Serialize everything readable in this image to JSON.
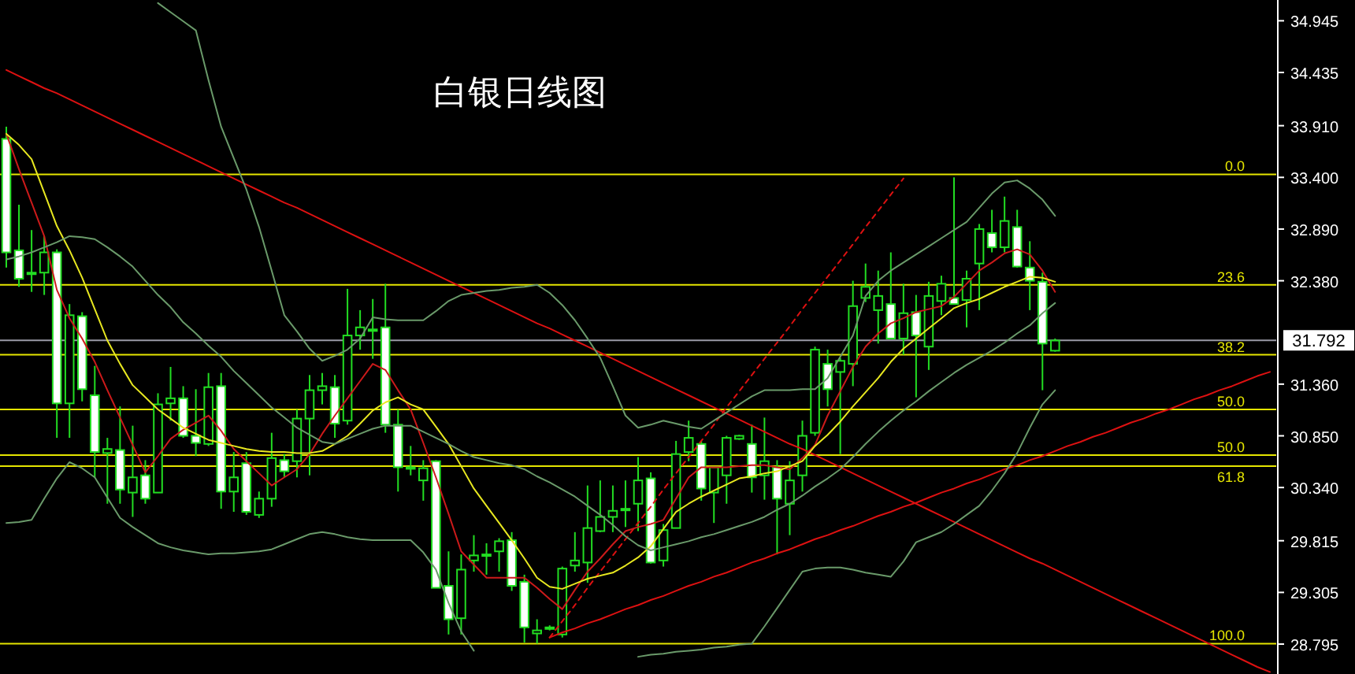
{
  "chart_data": {
    "type": "candlestick",
    "title": "白银日线图",
    "categories": [
      null,
      null,
      null,
      null,
      null,
      null,
      null,
      null,
      null,
      null,
      null,
      null,
      null,
      null,
      null,
      null,
      null,
      null,
      null,
      null,
      null,
      null,
      null,
      null,
      null,
      null,
      null,
      null,
      null,
      null,
      null,
      null,
      null,
      null,
      null,
      null,
      null,
      null,
      null,
      null,
      null,
      null,
      null,
      null,
      null,
      null,
      null,
      null,
      null,
      null,
      null,
      null,
      null,
      null,
      null,
      null,
      null,
      null,
      null,
      null,
      null,
      null,
      null,
      null,
      null,
      null,
      null,
      null,
      null,
      null,
      null,
      null,
      null,
      null,
      null,
      null,
      null,
      null,
      null,
      null,
      null,
      null,
      null,
      null,
      null,
      null,
      null,
      null,
      null,
      null,
      null,
      null,
      null,
      null,
      null,
      null,
      null,
      null,
      null,
      null,
      null
    ],
    "ylim": [
      28.5,
      35.15
    ],
    "yticks": [
      34.945,
      34.435,
      {
        "value": 33.91,
        "label": "33.910"
      },
      {
        "value": 33.4,
        "label": "33.400"
      },
      {
        "value": 32.89,
        "label": "32.890"
      },
      {
        "value": 32.38,
        "label": "32.380"
      },
      {
        "value": 31.36,
        "label": "31.360"
      },
      {
        "value": 30.85,
        "label": "30.850"
      },
      {
        "value": 30.34,
        "label": "30.340"
      },
      29.815,
      29.305,
      28.795
    ],
    "tick_labels": "y",
    "color": "#22dd22",
    "ohlc": [
      [
        33.78,
        33.9,
        32.51,
        32.66
      ],
      [
        32.68,
        33.13,
        32.32,
        32.4
      ],
      [
        32.46,
        32.88,
        32.27,
        32.46
      ],
      [
        32.46,
        32.82,
        32.24,
        32.66
      ],
      [
        32.66,
        32.69,
        30.83,
        31.17
      ],
      [
        31.17,
        32.15,
        30.83,
        32.04
      ],
      [
        32.03,
        32.07,
        31.19,
        31.31
      ],
      [
        31.25,
        31.54,
        30.44,
        30.69
      ],
      [
        30.68,
        30.83,
        30.18,
        30.72
      ],
      [
        30.71,
        31.14,
        30.18,
        30.32
      ],
      [
        30.29,
        30.95,
        30.05,
        30.44
      ],
      [
        30.46,
        30.61,
        30.18,
        30.23
      ],
      [
        30.29,
        31.27,
        30.29,
        31.16
      ],
      [
        31.17,
        31.53,
        31.0,
        31.22
      ],
      [
        31.22,
        31.34,
        30.83,
        30.85
      ],
      [
        30.85,
        31.31,
        30.65,
        30.78
      ],
      [
        30.77,
        31.47,
        30.75,
        31.33
      ],
      [
        31.34,
        31.47,
        30.13,
        30.3
      ],
      [
        30.3,
        30.69,
        30.1,
        30.44
      ],
      [
        30.58,
        30.69,
        30.07,
        30.1
      ],
      [
        30.07,
        30.3,
        30.04,
        30.23
      ],
      [
        30.23,
        30.88,
        30.15,
        30.63
      ],
      [
        30.61,
        30.67,
        30.44,
        30.5
      ],
      [
        30.6,
        31.11,
        30.44,
        31.02
      ],
      [
        31.02,
        31.45,
        30.46,
        31.3
      ],
      [
        31.3,
        31.47,
        31.16,
        31.34
      ],
      [
        31.33,
        31.45,
        30.83,
        30.97
      ],
      [
        31.0,
        32.3,
        30.96,
        31.84
      ],
      [
        31.84,
        32.09,
        31.7,
        31.92
      ],
      [
        31.9,
        32.2,
        31.61,
        31.9
      ],
      [
        31.92,
        32.35,
        30.88,
        30.96
      ],
      [
        30.96,
        31.11,
        30.3,
        30.54
      ],
      [
        30.54,
        30.75,
        30.46,
        30.53
      ],
      [
        30.41,
        30.61,
        30.21,
        30.53
      ],
      [
        30.6,
        30.61,
        29.35,
        29.35
      ],
      [
        29.37,
        29.71,
        28.89,
        29.04
      ],
      [
        29.05,
        29.68,
        28.89,
        29.53
      ],
      [
        29.62,
        29.87,
        29.51,
        29.67
      ],
      [
        29.68,
        29.79,
        29.48,
        29.68
      ],
      [
        29.71,
        29.84,
        29.51,
        29.81
      ],
      [
        29.82,
        29.9,
        29.32,
        29.37
      ],
      [
        29.41,
        29.48,
        28.81,
        28.96
      ],
      [
        28.9,
        29.04,
        28.8,
        28.93
      ],
      [
        28.95,
        28.98,
        28.93,
        28.96
      ],
      [
        28.89,
        29.56,
        28.86,
        29.54
      ],
      [
        29.57,
        29.9,
        29.51,
        29.62
      ],
      [
        29.6,
        30.36,
        29.4,
        29.94
      ],
      [
        29.91,
        30.41,
        29.9,
        30.05
      ],
      [
        30.05,
        30.36,
        29.9,
        30.11
      ],
      [
        30.13,
        30.41,
        29.95,
        30.13
      ],
      [
        30.18,
        30.64,
        29.91,
        30.41
      ],
      [
        30.43,
        30.49,
        29.59,
        29.6
      ],
      [
        29.62,
        29.98,
        29.56,
        29.92
      ],
      [
        29.94,
        30.8,
        29.94,
        30.67
      ],
      [
        30.69,
        31.0,
        30.6,
        30.83
      ],
      [
        30.77,
        30.8,
        30.21,
        30.33
      ],
      [
        30.29,
        30.54,
        29.99,
        30.54
      ],
      [
        30.46,
        30.85,
        30.18,
        30.83
      ],
      [
        30.82,
        30.86,
        30.81,
        30.85
      ],
      [
        30.77,
        30.96,
        30.29,
        30.44
      ],
      [
        30.46,
        31.03,
        30.22,
        30.6
      ],
      [
        30.54,
        30.61,
        29.68,
        30.23
      ],
      [
        30.18,
        30.6,
        29.87,
        30.41
      ],
      [
        30.46,
        31.0,
        30.3,
        30.85
      ],
      [
        30.88,
        31.73,
        30.85,
        31.7
      ],
      [
        31.56,
        31.7,
        31.14,
        31.31
      ],
      [
        31.48,
        31.62,
        30.67,
        31.59
      ],
      [
        31.56,
        32.38,
        31.34,
        32.13
      ],
      [
        32.21,
        32.55,
        32.17,
        32.32
      ],
      [
        32.09,
        32.48,
        31.76,
        32.23
      ],
      [
        32.15,
        32.66,
        31.81,
        31.81
      ],
      [
        31.81,
        32.35,
        31.65,
        32.06
      ],
      [
        32.07,
        32.24,
        31.23,
        31.84
      ],
      [
        31.73,
        32.37,
        31.5,
        32.23
      ],
      [
        32.18,
        32.43,
        32.04,
        32.35
      ],
      [
        32.21,
        33.4,
        32.15,
        32.15
      ],
      [
        32.19,
        32.48,
        31.92,
        32.4
      ],
      [
        32.55,
        32.94,
        32.09,
        32.89
      ],
      [
        32.85,
        33.08,
        32.66,
        32.71
      ],
      [
        32.71,
        33.21,
        32.66,
        32.97
      ],
      [
        32.91,
        33.08,
        32.51,
        32.52
      ],
      [
        32.51,
        32.77,
        32.09,
        32.38
      ],
      [
        32.37,
        32.46,
        31.3,
        31.76
      ],
      [
        31.69,
        31.81,
        31.68,
        31.79
      ],
      null,
      null,
      null,
      null,
      null,
      null,
      null,
      null,
      null,
      null,
      null,
      null,
      null,
      null,
      null,
      null,
      null
    ],
    "series": [
      {
        "type": "line",
        "color": "#dd1111",
        "values": [
          34.46,
          34.4,
          34.34,
          34.28,
          34.23,
          34.17,
          34.11,
          34.05,
          33.99,
          33.93,
          33.87,
          33.81,
          33.75,
          33.69,
          33.63,
          33.57,
          33.51,
          33.45,
          33.39,
          33.33,
          33.27,
          33.21,
          33.15,
          33.1,
          33.04,
          32.98,
          32.92,
          32.86,
          32.8,
          32.74,
          32.68,
          32.62,
          32.56,
          32.5,
          32.44,
          32.38,
          32.32,
          32.26,
          32.2,
          32.14,
          32.08,
          32.02,
          31.96,
          31.91,
          31.85,
          31.79,
          31.73,
          31.67,
          31.61,
          31.55,
          31.49,
          31.43,
          31.37,
          31.31,
          31.25,
          31.19,
          31.13,
          31.07,
          31.01,
          30.95,
          30.89,
          30.83,
          30.77,
          30.72,
          30.66,
          30.6,
          30.54,
          30.48,
          30.42,
          30.36,
          30.3,
          30.24,
          30.18,
          30.12,
          30.06,
          30.0,
          29.94,
          29.88,
          29.82,
          29.76,
          29.7,
          29.64,
          29.59,
          29.53,
          29.47,
          29.41,
          29.35,
          29.29,
          29.23,
          29.17,
          29.11,
          29.05,
          28.99,
          28.93,
          28.87,
          28.81,
          28.75,
          28.69,
          28.63,
          28.57,
          28.52
        ]
      },
      {
        "type": "line",
        "color": "#dd1111",
        "values": [
          null,
          null,
          null,
          null,
          null,
          null,
          null,
          null,
          null,
          null,
          null,
          null,
          null,
          null,
          null,
          null,
          null,
          null,
          null,
          null,
          null,
          null,
          null,
          null,
          null,
          null,
          null,
          null,
          null,
          null,
          null,
          null,
          null,
          null,
          null,
          null,
          null,
          null,
          null,
          null,
          null,
          null,
          null,
          28.86,
          28.91,
          28.95,
          29.0,
          29.04,
          29.09,
          29.14,
          29.18,
          29.23,
          29.27,
          29.32,
          29.37,
          29.41,
          29.46,
          29.5,
          29.55,
          29.6,
          29.64,
          29.69,
          29.73,
          29.78,
          29.83,
          29.87,
          29.92,
          29.96,
          30.01,
          30.06,
          30.1,
          30.15,
          30.19,
          30.24,
          30.29,
          30.33,
          30.38,
          30.42,
          30.47,
          30.52,
          30.56,
          30.61,
          30.65,
          30.7,
          30.75,
          30.79,
          30.84,
          30.88,
          30.93,
          30.98,
          31.02,
          31.07,
          31.11,
          31.16,
          31.21,
          31.25,
          31.3,
          31.34,
          31.39,
          31.44,
          31.48
        ]
      },
      {
        "type": "line",
        "color": "#dd1111",
        "line_style": "dashed",
        "values": [
          null,
          null,
          null,
          null,
          null,
          null,
          null,
          null,
          null,
          null,
          null,
          null,
          null,
          null,
          null,
          null,
          null,
          null,
          null,
          null,
          null,
          null,
          null,
          null,
          null,
          null,
          null,
          null,
          null,
          null,
          null,
          null,
          null,
          null,
          null,
          null,
          null,
          null,
          null,
          null,
          null,
          null,
          null,
          28.86,
          29.02,
          29.18,
          29.35,
          29.51,
          29.67,
          29.83,
          29.99,
          30.15,
          30.32,
          30.48,
          30.64,
          30.8,
          30.96,
          31.13,
          31.29,
          31.45,
          31.61,
          31.77,
          31.93,
          32.1,
          32.26,
          32.42,
          32.58,
          32.74,
          32.91,
          33.07,
          33.23,
          33.39,
          null,
          null,
          null,
          null,
          null,
          null,
          null,
          null,
          null,
          null,
          null,
          null,
          null,
          null,
          null,
          null,
          null,
          null,
          null,
          null,
          null,
          null,
          null,
          null,
          null,
          null,
          null,
          null,
          null
        ]
      },
      {
        "type": "line",
        "color": "#cc1a1a",
        "values": [
          33.83,
          33.48,
          33.15,
          32.82,
          32.29,
          32.01,
          31.81,
          31.58,
          31.3,
          31.03,
          30.76,
          30.49,
          30.65,
          30.82,
          30.91,
          30.98,
          31.05,
          30.9,
          30.72,
          30.6,
          30.48,
          30.36,
          30.44,
          30.52,
          30.67,
          30.87,
          31.05,
          31.22,
          31.39,
          31.56,
          31.5,
          31.3,
          31.11,
          30.78,
          30.44,
          30.08,
          29.71,
          29.58,
          29.45,
          29.45,
          29.45,
          29.45,
          29.35,
          29.24,
          29.14,
          29.33,
          29.51,
          29.64,
          29.78,
          29.91,
          29.95,
          29.98,
          30.02,
          30.23,
          30.44,
          30.54,
          30.54,
          30.54,
          30.55,
          30.56,
          30.56,
          30.54,
          30.52,
          30.63,
          30.76,
          31.05,
          31.29,
          31.53,
          31.73,
          31.86,
          31.96,
          32.01,
          32.07,
          32.1,
          32.13,
          32.22,
          32.35,
          32.48,
          32.56,
          32.65,
          32.69,
          32.64,
          32.48,
          32.27,
          null,
          null,
          null,
          null,
          null,
          null,
          null,
          null,
          null,
          null,
          null,
          null,
          null,
          null,
          null,
          null,
          null
        ]
      },
      {
        "type": "line",
        "color": "#e8e820",
        "values": [
          33.83,
          33.72,
          33.58,
          33.25,
          32.92,
          32.68,
          32.41,
          32.1,
          31.79,
          31.56,
          31.35,
          31.23,
          31.11,
          31.02,
          30.93,
          30.87,
          30.81,
          30.78,
          30.75,
          30.72,
          30.7,
          30.69,
          30.69,
          30.68,
          30.68,
          30.7,
          30.77,
          30.85,
          30.97,
          31.1,
          31.18,
          31.23,
          31.16,
          31.11,
          30.94,
          30.77,
          30.55,
          30.33,
          30.16,
          29.99,
          29.82,
          29.64,
          29.45,
          29.36,
          29.34,
          29.39,
          29.44,
          29.47,
          29.5,
          29.57,
          29.65,
          29.76,
          29.93,
          30.1,
          30.18,
          30.25,
          30.31,
          30.37,
          30.43,
          30.45,
          30.48,
          30.5,
          30.55,
          30.6,
          30.75,
          30.86,
          30.99,
          31.14,
          31.28,
          31.42,
          31.58,
          31.71,
          31.81,
          31.91,
          32.01,
          32.11,
          32.16,
          32.2,
          32.26,
          32.32,
          32.37,
          32.42,
          32.41,
          32.37,
          null,
          null,
          null,
          null,
          null,
          null,
          null,
          null,
          null,
          null,
          null,
          null,
          null,
          null,
          null,
          null,
          null
        ]
      },
      {
        "type": "line",
        "color": "#6a9a6a",
        "values": [
          32.59,
          32.62,
          32.66,
          32.71,
          32.76,
          32.82,
          32.81,
          32.79,
          32.71,
          32.62,
          32.52,
          32.38,
          32.24,
          32.12,
          31.97,
          31.86,
          31.74,
          31.63,
          31.49,
          31.37,
          31.25,
          31.13,
          31.03,
          30.93,
          30.86,
          30.79,
          30.77,
          30.82,
          30.87,
          30.92,
          30.95,
          30.95,
          30.95,
          30.89,
          30.83,
          30.77,
          30.7,
          30.64,
          30.61,
          30.58,
          30.56,
          30.52,
          30.45,
          30.39,
          30.32,
          30.25,
          30.16,
          30.07,
          29.97,
          29.86,
          29.77,
          29.72,
          29.75,
          29.78,
          29.81,
          29.85,
          29.88,
          29.92,
          29.96,
          30.0,
          30.05,
          30.12,
          30.18,
          30.26,
          30.35,
          30.43,
          30.52,
          30.64,
          30.77,
          30.89,
          31.0,
          31.1,
          31.19,
          31.29,
          31.38,
          31.47,
          31.55,
          31.62,
          31.69,
          31.77,
          31.86,
          31.94,
          32.06,
          32.16,
          null,
          null,
          null,
          null,
          null,
          null,
          null,
          null,
          null,
          null,
          null,
          null,
          null,
          null,
          null,
          null,
          null
        ]
      },
      {
        "type": "line",
        "color": "#6a9a6a",
        "values": [
          null,
          null,
          null,
          null,
          null,
          null,
          null,
          null,
          null,
          null,
          null,
          null,
          35.12,
          35.03,
          34.94,
          34.85,
          34.36,
          33.9,
          33.59,
          33.28,
          32.91,
          32.48,
          32.04,
          31.88,
          31.71,
          31.59,
          31.64,
          31.7,
          31.81,
          32.02,
          32.0,
          31.99,
          31.99,
          31.99,
          32.08,
          32.18,
          32.24,
          32.26,
          32.28,
          32.29,
          32.31,
          32.32,
          32.34,
          32.26,
          32.14,
          31.99,
          31.81,
          31.62,
          31.34,
          31.05,
          30.93,
          30.96,
          31.0,
          30.97,
          30.94,
          30.92,
          31.0,
          31.08,
          31.16,
          31.24,
          31.3,
          31.3,
          31.3,
          31.31,
          31.31,
          31.42,
          31.63,
          31.84,
          32.23,
          32.38,
          32.48,
          32.56,
          32.64,
          32.72,
          32.8,
          32.88,
          32.96,
          33.1,
          33.24,
          33.35,
          33.37,
          33.29,
          33.18,
          33.02,
          null,
          null,
          null,
          null,
          null,
          null,
          null,
          null,
          null,
          null,
          null,
          null,
          null,
          null,
          null,
          null,
          null
        ]
      },
      {
        "type": "line",
        "color": "#6a9a6a",
        "values": [
          29.99,
          30.0,
          30.02,
          30.23,
          30.43,
          30.59,
          30.53,
          30.44,
          30.24,
          30.04,
          29.95,
          29.87,
          29.79,
          29.75,
          29.72,
          29.7,
          29.68,
          29.69,
          29.69,
          29.7,
          29.71,
          29.73,
          29.78,
          29.83,
          29.88,
          29.9,
          29.88,
          29.85,
          29.83,
          29.82,
          29.82,
          29.82,
          29.82,
          29.7,
          29.53,
          29.2,
          28.92,
          28.73,
          null,
          null,
          null,
          null,
          null,
          null,
          null,
          null,
          null,
          null,
          null,
          null,
          28.67,
          28.69,
          28.7,
          28.72,
          28.73,
          28.74,
          28.76,
          28.77,
          28.79,
          28.8,
          28.97,
          29.15,
          29.33,
          29.51,
          29.54,
          29.55,
          29.55,
          29.53,
          29.5,
          29.48,
          29.46,
          29.61,
          29.8,
          29.85,
          29.9,
          29.98,
          30.07,
          30.16,
          30.31,
          30.48,
          30.68,
          30.93,
          31.16,
          31.3,
          null,
          null,
          null,
          null,
          null,
          null,
          null,
          null,
          null,
          null,
          null,
          null,
          null,
          null,
          null,
          null,
          null
        ]
      }
    ],
    "ref_lines": [
      {
        "axis": "y",
        "value": 33.43,
        "color": "#e6e600"
      },
      {
        "axis": "y",
        "value": 32.34,
        "color": "#e6e600"
      },
      {
        "axis": "y",
        "value": 31.792,
        "label": "31.792",
        "color": "#9a9aa6"
      },
      {
        "axis": "y",
        "value": 31.65,
        "color": "#e6e600"
      },
      {
        "axis": "y",
        "value": 31.11,
        "color": "#e6e600"
      },
      {
        "axis": "y",
        "value": 30.66,
        "color": "#e6e600"
      },
      {
        "axis": "y",
        "value": 30.55,
        "color": "#e6e600"
      },
      {
        "axis": "y",
        "value": 28.8,
        "color": "#e6e600"
      }
    ],
    "annotations": [
      {
        "text": "0.0",
        "y": 33.43
      },
      {
        "text": "23.6",
        "y": 32.34
      },
      {
        "text": "38.2",
        "y": 31.65
      },
      {
        "text": "50.0",
        "y": 31.11
      },
      {
        "text": "50.0",
        "y": 30.66
      },
      {
        "text": "61.8",
        "y": 30.55
      },
      {
        "text": "100.0",
        "y": 28.8
      }
    ]
  }
}
